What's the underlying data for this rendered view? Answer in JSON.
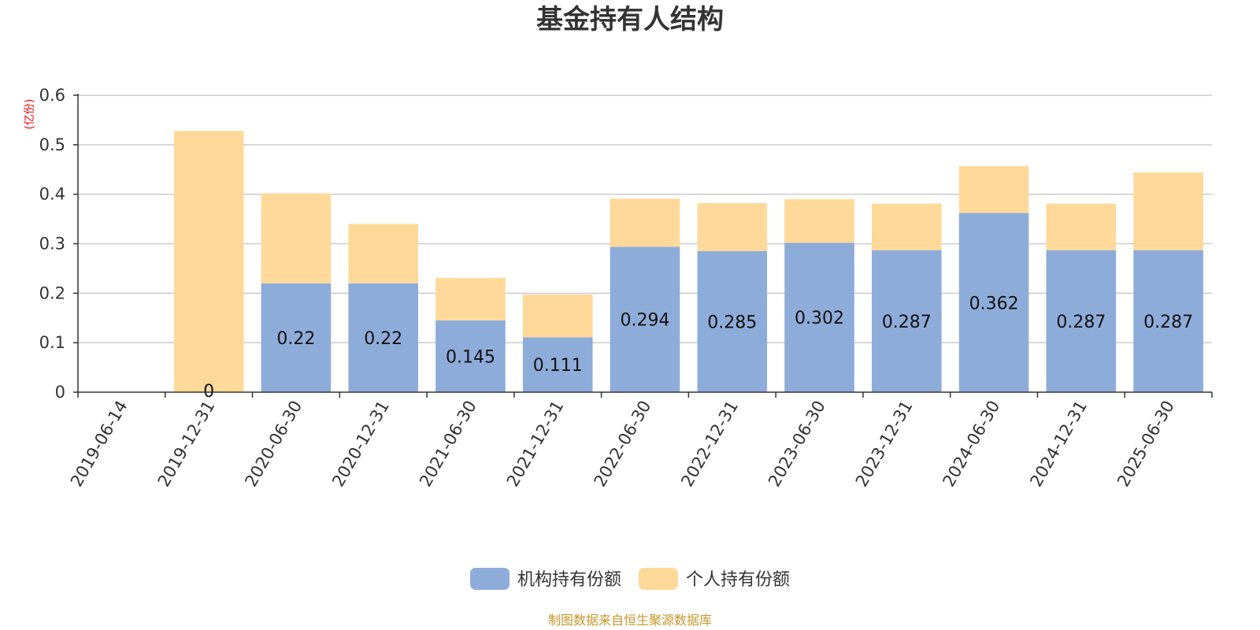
{
  "chart_data": {
    "type": "bar",
    "stacked": true,
    "title": "基金持有人结构",
    "unit_label": "(亿份)",
    "categories": [
      "2019-06-14",
      "2019-12-31",
      "2020-06-30",
      "2020-12-31",
      "2021-06-30",
      "2021-12-31",
      "2022-06-30",
      "2022-12-31",
      "2023-06-30",
      "2023-12-31",
      "2024-06-30",
      "2024-12-31",
      "2025-06-30"
    ],
    "series": [
      {
        "name": "机构持有份额",
        "color": "#8eacd9",
        "values": [
          0,
          0,
          0.22,
          0.22,
          0.145,
          0.111,
          0.294,
          0.285,
          0.302,
          0.287,
          0.362,
          0.287,
          0.287
        ],
        "labels": [
          "",
          "0",
          "0.22",
          "0.22",
          "0.145",
          "0.111",
          "0.294",
          "0.285",
          "0.302",
          "0.287",
          "0.362",
          "0.287",
          "0.287"
        ]
      },
      {
        "name": "个人持有份额",
        "color": "#ffd999",
        "values": [
          0,
          0.528,
          0.182,
          0.12,
          0.086,
          0.086,
          0.097,
          0.097,
          0.088,
          0.094,
          0.095,
          0.094,
          0.157
        ]
      }
    ],
    "ylim": [
      0,
      0.6
    ],
    "yticks": [
      "0",
      "0.1",
      "0.2",
      "0.3",
      "0.4",
      "0.5",
      "0.6"
    ],
    "grid": true,
    "legend_position": "bottom"
  },
  "source_note": "制图数据来自恒生聚源数据库"
}
